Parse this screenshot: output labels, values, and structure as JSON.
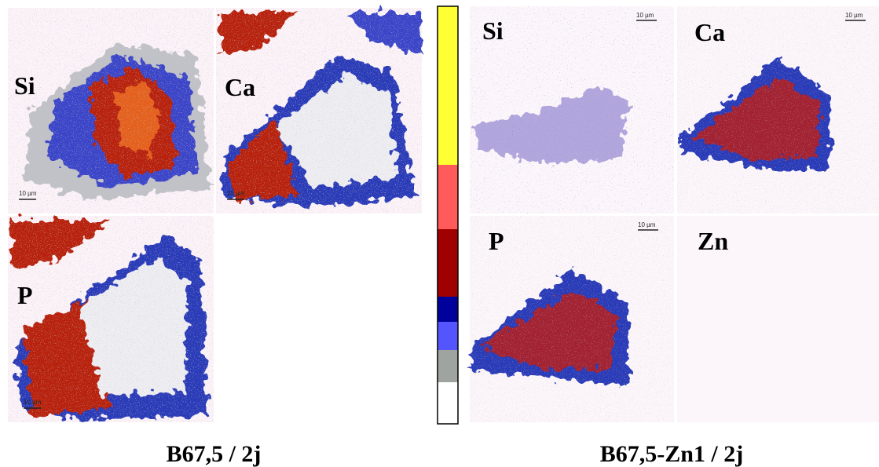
{
  "panels_left": [
    {
      "label": "Si",
      "scale_bar": "10 µm"
    },
    {
      "label": "Ca",
      "scale_bar": "10 µm"
    },
    {
      "label": "P",
      "scale_bar": "10 µm"
    }
  ],
  "panels_right": [
    {
      "label": "Si",
      "scale_bar": "10 µm"
    },
    {
      "label": "Ca",
      "scale_bar": "10 µm"
    },
    {
      "label": "P",
      "scale_bar": "10 µm"
    },
    {
      "label": "Zn"
    }
  ],
  "captions": [
    "B67,5 / 2j",
    "B67,5-Zn1 / 2j"
  ]
}
